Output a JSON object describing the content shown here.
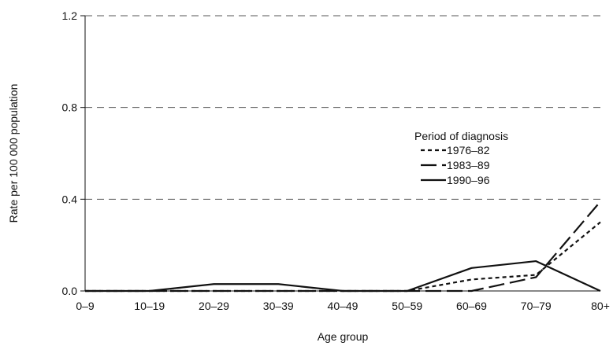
{
  "chart_data": {
    "type": "line",
    "xlabel": "Age group",
    "ylabel": "Rate per 100 000 population",
    "categories": [
      "0–9",
      "10–19",
      "20–29",
      "30–39",
      "40–49",
      "50–59",
      "60–69",
      "70–79",
      "80+"
    ],
    "ylim": [
      0,
      1.2
    ],
    "yticks": [
      "0.0",
      "0.4",
      "0.8",
      "1.2"
    ],
    "grid": "horizontal dashed",
    "legend": {
      "title": "Period of diagnosis",
      "placement": "right"
    },
    "series": [
      {
        "name": "1976–82",
        "style": "dotted",
        "values": [
          0,
          0,
          0,
          0,
          0,
          0,
          0.05,
          0.07,
          0.3
        ]
      },
      {
        "name": "1983–89",
        "style": "dashed",
        "values": [
          0,
          0,
          0,
          0,
          0,
          0,
          0,
          0.06,
          0.39
        ]
      },
      {
        "name": "1990–96",
        "style": "solid",
        "values": [
          0,
          0,
          0.03,
          0.03,
          0,
          0,
          0.1,
          0.13,
          0
        ]
      }
    ],
    "colors": {
      "line": "#111111",
      "grid": "#555555"
    }
  }
}
